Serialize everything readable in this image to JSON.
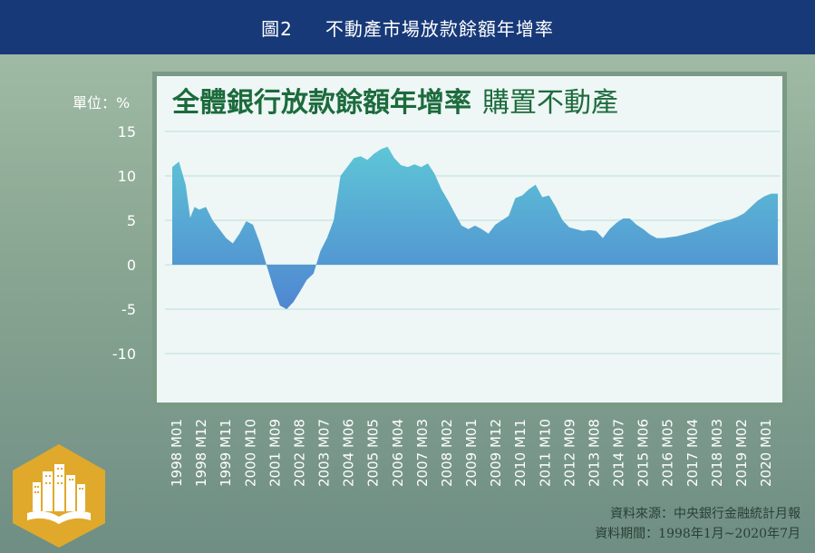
{
  "header": {
    "figure_number": "圖2",
    "title": "不動產市場放款餘額年增率"
  },
  "unit_label": "單位：%",
  "chart_title": {
    "main": "全體銀行放款餘額年增率",
    "sub": "購置不動產"
  },
  "colors": {
    "header_bg": "#173978",
    "area_top": "#5ec6d6",
    "area_bottom": "#4f86d1",
    "title_green": "#1c6b3c",
    "badge": "#e0a92b"
  },
  "source": {
    "line1": "資料來源：中央銀行金融統計月報",
    "line2": "資料期間：1998年1月~2020年7月"
  },
  "badge_icon": "city-book-icon",
  "chart_data": {
    "type": "area",
    "title": "全體銀行放款餘額年增率 購置不動產",
    "ylabel": "單位：%",
    "ylim": [
      -15,
      15
    ],
    "yticks": [
      15,
      10,
      5,
      0,
      -5,
      -10
    ],
    "grid": true,
    "xlabels": [
      "1998 M01",
      "1998 M12",
      "1999 M11",
      "2000 M10",
      "2001 M09",
      "2002 M08",
      "2003 M07",
      "2004 M06",
      "2005 M05",
      "2006 M04",
      "2007 M03",
      "2008 M02",
      "2009 M01",
      "2009 M12",
      "2010 M11",
      "2011 M10",
      "2012 M09",
      "2013 M08",
      "2014 M07",
      "2015 M06",
      "2016 M05",
      "2017 M04",
      "2018 M03",
      "2019 M02",
      "2020 M01"
    ],
    "series": [
      {
        "values": [
          {
            "x": "1998-01",
            "y": 11.0
          },
          {
            "x": "1998-04",
            "y": 11.6
          },
          {
            "x": "1998-07",
            "y": 9.0
          },
          {
            "x": "1998-09",
            "y": 5.3
          },
          {
            "x": "1998-11",
            "y": 6.5
          },
          {
            "x": "1999-01",
            "y": 6.2
          },
          {
            "x": "1999-04",
            "y": 6.5
          },
          {
            "x": "1999-07",
            "y": 5.0
          },
          {
            "x": "1999-10",
            "y": 4.0
          },
          {
            "x": "2000-01",
            "y": 3.0
          },
          {
            "x": "2000-04",
            "y": 2.4
          },
          {
            "x": "2000-07",
            "y": 3.5
          },
          {
            "x": "2000-10",
            "y": 4.9
          },
          {
            "x": "2001-01",
            "y": 4.5
          },
          {
            "x": "2001-04",
            "y": 2.5
          },
          {
            "x": "2001-07",
            "y": 0.0
          },
          {
            "x": "2001-10",
            "y": -2.5
          },
          {
            "x": "2002-01",
            "y": -4.6
          },
          {
            "x": "2002-04",
            "y": -5.0
          },
          {
            "x": "2002-07",
            "y": -4.2
          },
          {
            "x": "2002-10",
            "y": -3.0
          },
          {
            "x": "2003-01",
            "y": -1.7
          },
          {
            "x": "2003-04",
            "y": -1.0
          },
          {
            "x": "2003-07",
            "y": 1.5
          },
          {
            "x": "2003-10",
            "y": 3.0
          },
          {
            "x": "2004-01",
            "y": 5.0
          },
          {
            "x": "2004-04",
            "y": 10.0
          },
          {
            "x": "2004-07",
            "y": 11.0
          },
          {
            "x": "2004-10",
            "y": 12.0
          },
          {
            "x": "2005-01",
            "y": 12.2
          },
          {
            "x": "2005-04",
            "y": 11.8
          },
          {
            "x": "2005-07",
            "y": 12.5
          },
          {
            "x": "2005-10",
            "y": 13.0
          },
          {
            "x": "2006-01",
            "y": 13.3
          },
          {
            "x": "2006-04",
            "y": 12.0
          },
          {
            "x": "2006-07",
            "y": 11.2
          },
          {
            "x": "2006-10",
            "y": 11.0
          },
          {
            "x": "2007-01",
            "y": 11.3
          },
          {
            "x": "2007-04",
            "y": 11.0
          },
          {
            "x": "2007-07",
            "y": 11.4
          },
          {
            "x": "2007-10",
            "y": 10.2
          },
          {
            "x": "2008-01",
            "y": 8.5
          },
          {
            "x": "2008-04",
            "y": 7.2
          },
          {
            "x": "2008-07",
            "y": 5.8
          },
          {
            "x": "2008-10",
            "y": 4.4
          },
          {
            "x": "2009-01",
            "y": 4.0
          },
          {
            "x": "2009-04",
            "y": 4.4
          },
          {
            "x": "2009-07",
            "y": 4.0
          },
          {
            "x": "2009-10",
            "y": 3.5
          },
          {
            "x": "2010-01",
            "y": 4.5
          },
          {
            "x": "2010-04",
            "y": 5.0
          },
          {
            "x": "2010-07",
            "y": 5.5
          },
          {
            "x": "2010-10",
            "y": 7.5
          },
          {
            "x": "2011-01",
            "y": 7.8
          },
          {
            "x": "2011-04",
            "y": 8.5
          },
          {
            "x": "2011-07",
            "y": 9.0
          },
          {
            "x": "2011-10",
            "y": 7.6
          },
          {
            "x": "2012-01",
            "y": 7.8
          },
          {
            "x": "2012-04",
            "y": 6.5
          },
          {
            "x": "2012-07",
            "y": 5.0
          },
          {
            "x": "2012-10",
            "y": 4.2
          },
          {
            "x": "2013-01",
            "y": 4.0
          },
          {
            "x": "2013-04",
            "y": 3.8
          },
          {
            "x": "2013-07",
            "y": 3.9
          },
          {
            "x": "2013-10",
            "y": 3.8
          },
          {
            "x": "2014-01",
            "y": 3.0
          },
          {
            "x": "2014-04",
            "y": 4.0
          },
          {
            "x": "2014-07",
            "y": 4.7
          },
          {
            "x": "2014-10",
            "y": 5.2
          },
          {
            "x": "2015-01",
            "y": 5.2
          },
          {
            "x": "2015-04",
            "y": 4.5
          },
          {
            "x": "2015-07",
            "y": 4.0
          },
          {
            "x": "2015-10",
            "y": 3.4
          },
          {
            "x": "2016-01",
            "y": 3.0
          },
          {
            "x": "2016-04",
            "y": 3.0
          },
          {
            "x": "2016-07",
            "y": 3.1
          },
          {
            "x": "2016-10",
            "y": 3.2
          },
          {
            "x": "2017-01",
            "y": 3.4
          },
          {
            "x": "2017-04",
            "y": 3.6
          },
          {
            "x": "2017-07",
            "y": 3.8
          },
          {
            "x": "2017-10",
            "y": 4.1
          },
          {
            "x": "2018-01",
            "y": 4.4
          },
          {
            "x": "2018-04",
            "y": 4.7
          },
          {
            "x": "2018-07",
            "y": 4.9
          },
          {
            "x": "2018-10",
            "y": 5.1
          },
          {
            "x": "2019-01",
            "y": 5.4
          },
          {
            "x": "2019-04",
            "y": 5.8
          },
          {
            "x": "2019-07",
            "y": 6.5
          },
          {
            "x": "2019-10",
            "y": 7.2
          },
          {
            "x": "2020-01",
            "y": 7.7
          },
          {
            "x": "2020-04",
            "y": 8.0
          },
          {
            "x": "2020-07",
            "y": 8.0
          }
        ]
      }
    ]
  }
}
